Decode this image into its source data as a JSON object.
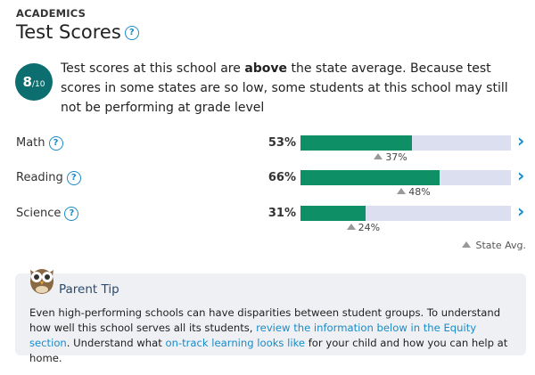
{
  "header": {
    "eyebrow": "ACADEMICS",
    "title": "Test Scores",
    "help": "?"
  },
  "rating": {
    "score": "8",
    "scale": "/10"
  },
  "summary": [
    "Test scores at this school are ",
    "above",
    " the state average. Because test scores in some states are so low, some students at this school may still not be performing at grade level"
  ],
  "subjects": [
    {
      "name": "Math",
      "help": "?",
      "value": 53,
      "value_label": "53%",
      "state_avg": 37,
      "state_avg_label": "37%",
      "arrow": "›"
    },
    {
      "name": "Reading",
      "help": "?",
      "value": 66,
      "value_label": "66%",
      "state_avg": 48,
      "state_avg_label": "48%",
      "arrow": "›"
    },
    {
      "name": "Science",
      "help": "?",
      "value": 31,
      "value_label": "31%",
      "state_avg": 24,
      "state_avg_label": "24%",
      "arrow": "›"
    }
  ],
  "legend": {
    "label": "State Avg."
  },
  "tip": {
    "title": "Parent Tip",
    "body": [
      "Even high-performing schools can have disparities between student groups. To understand how well this school serves all its students, ",
      "review the information below in the Equity section",
      ". Understand what ",
      "on-track learning looks like",
      " for your child and how you can help at home."
    ]
  }
}
